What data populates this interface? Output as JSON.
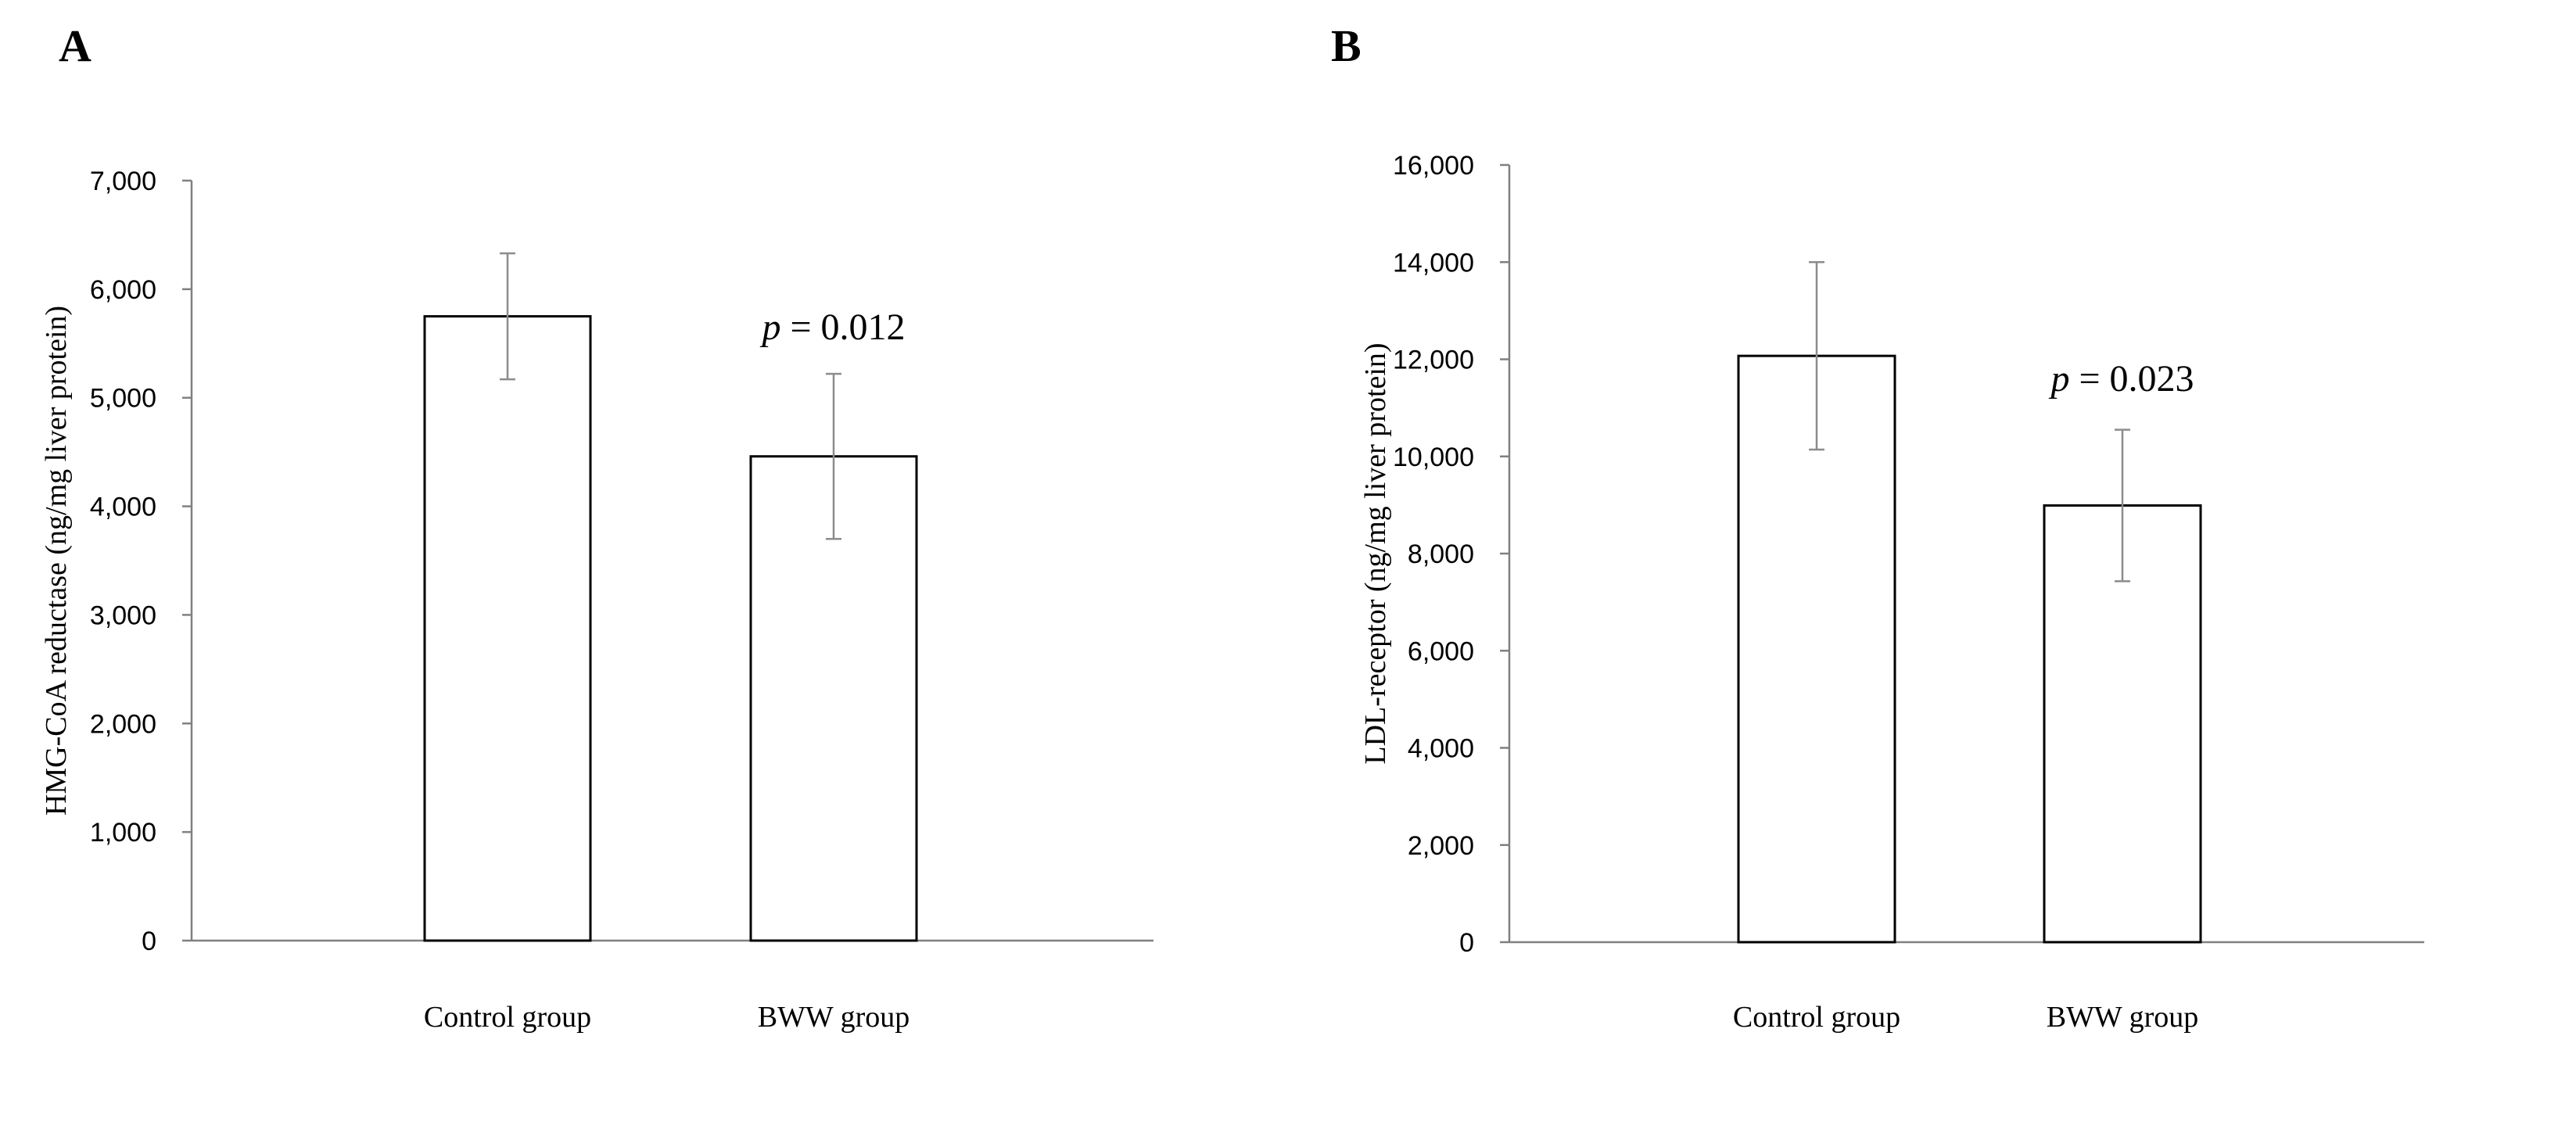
{
  "chart_data": [
    {
      "panel": "A",
      "type": "bar",
      "categories": [
        "Control group",
        "BWW group"
      ],
      "values": [
        5750,
        4460
      ],
      "errors": [
        580,
        760
      ],
      "ylabel": "HMG-CoA reductase (ng/mg liver protein)",
      "ylim": [
        0,
        7000
      ],
      "yticks": [
        0,
        1000,
        2000,
        3000,
        4000,
        5000,
        6000,
        7000
      ],
      "ytick_labels": [
        "0",
        "1,000",
        "2,000",
        "3,000",
        "4,000",
        "5,000",
        "6,000",
        "7,000"
      ],
      "grid": false,
      "annotation": {
        "p_symbol": "p",
        "rest": " = 0.012",
        "category": "BWW group"
      },
      "colors": {
        "bar_fill": "#ffffff",
        "bar_stroke": "#000000",
        "error_bar": "#8c8c8c",
        "axis": "#808080"
      }
    },
    {
      "panel": "B",
      "type": "bar",
      "categories": [
        "Control group",
        "BWW group"
      ],
      "values": [
        12070,
        8990
      ],
      "errors": [
        1930,
        1560
      ],
      "ylabel": "LDL-receptor  (ng/mg liver protein)",
      "ylim": [
        0,
        16000
      ],
      "yticks": [
        0,
        2000,
        4000,
        6000,
        8000,
        10000,
        12000,
        14000,
        16000
      ],
      "ytick_labels": [
        "0",
        "2,000",
        "4,000",
        "6,000",
        "8,000",
        "10,000",
        "12,000",
        "14,000",
        "16,000"
      ],
      "grid": false,
      "annotation": {
        "p_symbol": "p",
        "rest": " = 0.023",
        "category": "BWW group"
      },
      "colors": {
        "bar_fill": "#ffffff",
        "bar_stroke": "#000000",
        "error_bar": "#8c8c8c",
        "axis": "#808080"
      }
    }
  ]
}
